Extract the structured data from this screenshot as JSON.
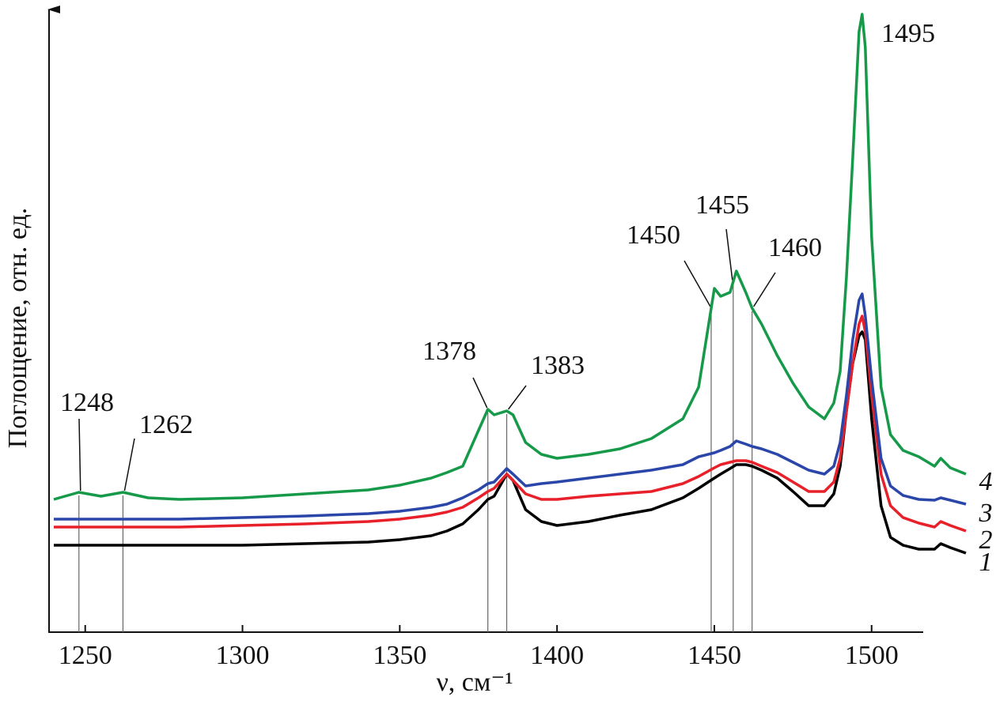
{
  "chart_data": {
    "type": "line",
    "xlabel": "ν, см⁻¹",
    "ylabel": "Поглощение, отн. ед.",
    "x": [
      1240,
      1248,
      1255,
      1262,
      1270,
      1280,
      1300,
      1320,
      1340,
      1350,
      1360,
      1365,
      1370,
      1375,
      1378,
      1380,
      1384,
      1386,
      1390,
      1395,
      1400,
      1410,
      1420,
      1430,
      1440,
      1445,
      1450,
      1452,
      1455,
      1457,
      1460,
      1462,
      1465,
      1470,
      1475,
      1480,
      1485,
      1488,
      1490,
      1492,
      1494,
      1496,
      1497,
      1498,
      1500,
      1503,
      1506,
      1510,
      1515,
      1520,
      1522,
      1525,
      1530
    ],
    "series": [
      {
        "name": "1",
        "color": "#000000",
        "values": [
          110,
          110,
          110,
          110,
          110,
          110,
          110,
          112,
          114,
          117,
          122,
          128,
          137,
          155,
          168,
          172,
          200,
          192,
          155,
          140,
          135,
          140,
          148,
          155,
          170,
          182,
          195,
          200,
          207,
          212,
          212,
          210,
          205,
          195,
          178,
          160,
          160,
          175,
          210,
          280,
          340,
          375,
          380,
          370,
          270,
          160,
          120,
          110,
          105,
          105,
          112,
          107,
          100
        ]
      },
      {
        "name": "2",
        "color": "#e8202a",
        "values": [
          133,
          133,
          133,
          133,
          133,
          133,
          135,
          137,
          140,
          143,
          148,
          152,
          158,
          170,
          178,
          182,
          200,
          192,
          175,
          168,
          168,
          172,
          175,
          178,
          188,
          197,
          208,
          212,
          215,
          217,
          217,
          215,
          210,
          202,
          190,
          178,
          178,
          190,
          220,
          280,
          340,
          390,
          400,
          380,
          300,
          200,
          160,
          145,
          138,
          133,
          140,
          135,
          128
        ]
      },
      {
        "name": "3",
        "color": "#2a46a8",
        "values": [
          143,
          143,
          143,
          143,
          143,
          143,
          145,
          147,
          150,
          153,
          158,
          162,
          170,
          180,
          188,
          190,
          207,
          200,
          185,
          188,
          190,
          195,
          200,
          205,
          212,
          222,
          227,
          230,
          235,
          242,
          238,
          235,
          232,
          225,
          215,
          205,
          200,
          210,
          240,
          300,
          370,
          420,
          428,
          400,
          320,
          220,
          185,
          173,
          168,
          167,
          170,
          167,
          162
        ]
      },
      {
        "name": "4",
        "color": "#169a4a",
        "values": [
          168,
          177,
          172,
          177,
          170,
          168,
          170,
          175,
          180,
          186,
          195,
          202,
          210,
          255,
          282,
          275,
          280,
          275,
          240,
          225,
          220,
          225,
          232,
          245,
          270,
          310,
          435,
          425,
          430,
          457,
          430,
          410,
          390,
          350,
          315,
          285,
          270,
          290,
          330,
          450,
          600,
          760,
          782,
          740,
          500,
          310,
          250,
          230,
          222,
          210,
          220,
          208,
          200
        ]
      }
    ],
    "xlim": [
      1238,
      1532
    ],
    "ylim": [
      0,
      790
    ],
    "xticks": [
      1250,
      1300,
      1350,
      1400,
      1450,
      1500
    ],
    "annotations": [
      {
        "text": "1248",
        "x": 1248
      },
      {
        "text": "1262",
        "x": 1262
      },
      {
        "text": "1378",
        "x": 1378
      },
      {
        "text": "1383",
        "x": 1384
      },
      {
        "text": "1450",
        "x": 1449
      },
      {
        "text": "1455",
        "x": 1456
      },
      {
        "text": "1460",
        "x": 1462
      },
      {
        "text": "1495",
        "x": 1497
      }
    ]
  }
}
